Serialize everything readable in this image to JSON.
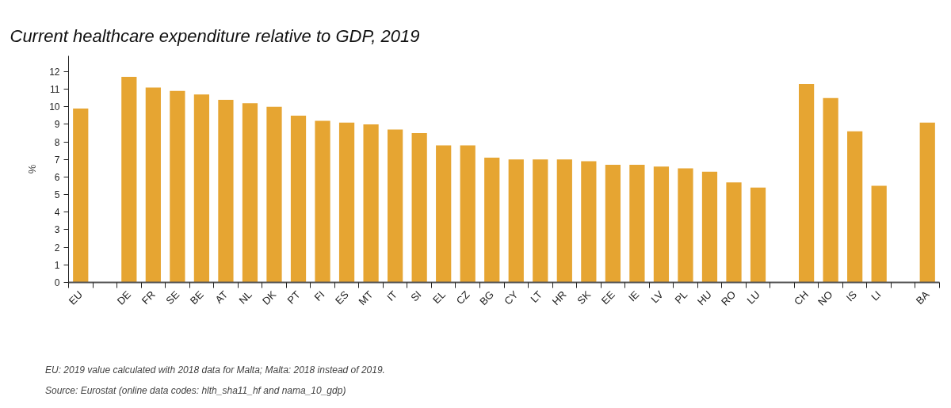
{
  "chart_data": {
    "type": "bar",
    "title": "Current healthcare expenditure relative to GDP, 2019",
    "ylabel": "%",
    "categories": [
      "EU",
      null,
      "DE",
      "FR",
      "SE",
      "BE",
      "AT",
      "NL",
      "DK",
      "PT",
      "FI",
      "ES",
      "MT",
      "IT",
      "SI",
      "EL",
      "CZ",
      "BG",
      "CY",
      "LT",
      "HR",
      "SK",
      "EE",
      "IE",
      "LV",
      "PL",
      "HU",
      "RO",
      "LU",
      null,
      "CH",
      "NO",
      "IS",
      "LI",
      null,
      "BA"
    ],
    "values": [
      9.9,
      null,
      11.7,
      11.1,
      10.9,
      10.7,
      10.4,
      10.2,
      10.0,
      9.5,
      9.2,
      9.1,
      9.0,
      8.7,
      8.5,
      7.8,
      7.8,
      7.1,
      7.0,
      7.0,
      7.0,
      6.9,
      6.7,
      6.7,
      6.6,
      6.5,
      6.3,
      5.7,
      5.4,
      null,
      11.3,
      10.5,
      8.6,
      5.5,
      null,
      9.1
    ],
    "color": "#e6a532",
    "ylim": [
      0,
      12.9
    ],
    "yticks": [
      0,
      1,
      2,
      3,
      4,
      5,
      6,
      7,
      8,
      9,
      10,
      11,
      12
    ],
    "grid": false,
    "annotations": [
      "EU: 2019 value calculated with 2018 data for Malta; Malta: 2018 instead of 2019.",
      "Source: Eurostat (online data codes: hlth_sha11_hf and nama_10_gdp)"
    ]
  }
}
